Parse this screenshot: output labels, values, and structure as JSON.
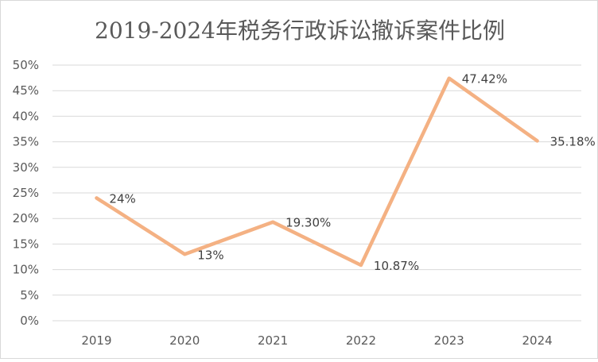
{
  "chart_data": {
    "type": "line",
    "title": "2019-2024年税务行政诉讼撤诉案件比例",
    "categories": [
      "2019",
      "2020",
      "2021",
      "2022",
      "2023",
      "2024"
    ],
    "series": [
      {
        "values": [
          24,
          13,
          19.3,
          10.87,
          47.42,
          35.18
        ],
        "data_labels": [
          "24%",
          "13%",
          "19.30%",
          "10.87%",
          "47.42%",
          "35.18%"
        ],
        "color": "#f4b183"
      }
    ],
    "ylim": [
      0,
      50
    ],
    "yticks": [
      "0%",
      "5%",
      "10%",
      "15%",
      "20%",
      "25%",
      "30%",
      "35%",
      "40%",
      "45%",
      "50%"
    ],
    "grid": true,
    "legend": "none"
  }
}
